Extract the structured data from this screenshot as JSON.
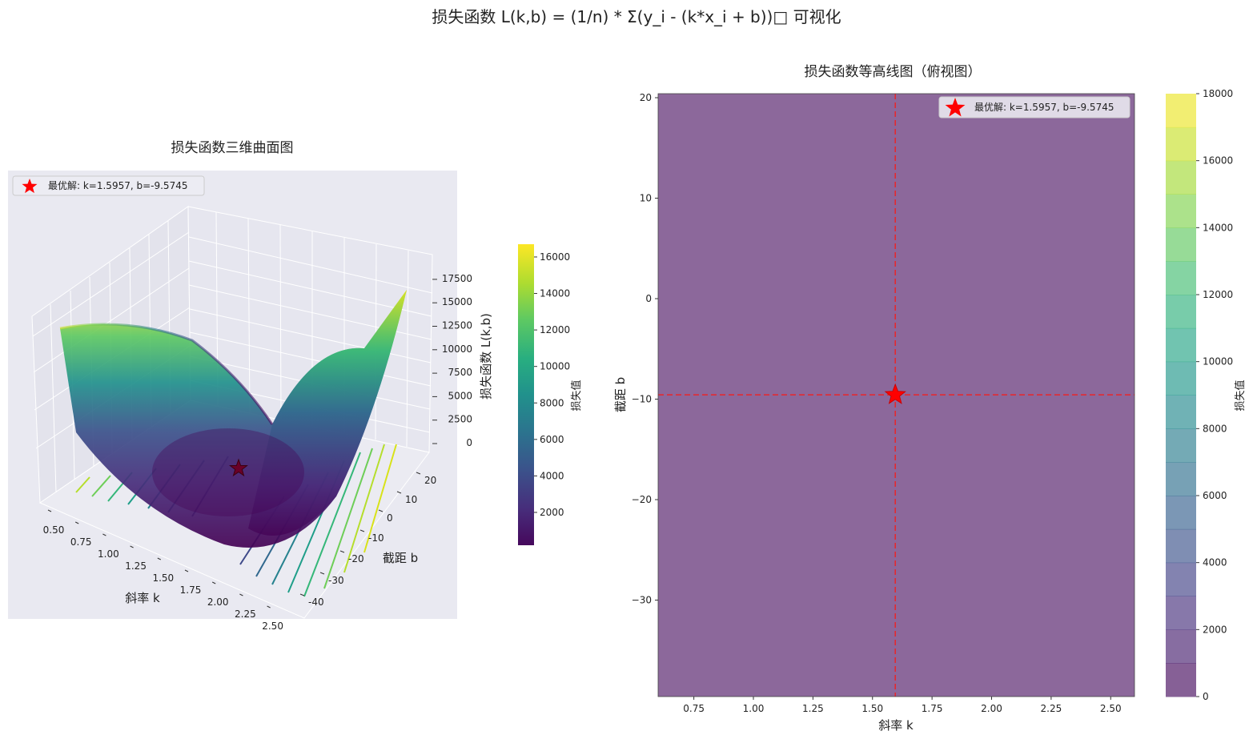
{
  "suptitle": "损失函数 L(k,b) = (1/n) * Σ(y_i - (k*x_i + b))□ 可视化",
  "colors": {
    "viridis": [
      "#440154",
      "#482878",
      "#3e4989",
      "#31688e",
      "#26828e",
      "#1f9e89",
      "#35b779",
      "#6ece58",
      "#b5de2b",
      "#fde725"
    ],
    "optimum": "#ff0000",
    "pane": "#e9e9f1",
    "grid": "#ffffff"
  },
  "optimum": {
    "k": 1.5957,
    "b": -9.5745,
    "label": "最优解: k=1.5957, b=-9.5745"
  },
  "chart_data": [
    {
      "type": "surface3d",
      "title": "损失函数三维曲面图",
      "xlabel": "斜率 k",
      "ylabel": "截距 b",
      "zlabel": "损失函数 L(k,b)",
      "x_ticks": [
        "0.50",
        "0.75",
        "1.00",
        "1.25",
        "1.50",
        "1.75",
        "2.00",
        "2.25",
        "2.50"
      ],
      "y_ticks": [
        "-40",
        "-30",
        "-20",
        "-10",
        "0",
        "10",
        "20"
      ],
      "z_ticks": [
        "0",
        "2500",
        "5000",
        "7500",
        "10000",
        "12500",
        "15000",
        "17500"
      ],
      "xlim": [
        0.5,
        2.6
      ],
      "ylim": [
        -40,
        20
      ],
      "zlim": [
        0,
        18000
      ],
      "legend": "upper-left",
      "colorbar": {
        "label": "损失值",
        "ticks": [
          "2000",
          "4000",
          "6000",
          "8000",
          "10000",
          "12000",
          "14000",
          "16000"
        ],
        "range": [
          200,
          16700
        ]
      },
      "optimum_marker": {
        "k": 1.5957,
        "b": -9.5745,
        "z": 0
      }
    },
    {
      "type": "contour",
      "title": "损失函数等高线图（俯视图）",
      "xlabel": "斜率 k",
      "ylabel": "截距 b",
      "x_ticks": [
        "0.75",
        "1.00",
        "1.25",
        "1.50",
        "1.75",
        "2.00",
        "2.25",
        "2.50"
      ],
      "y_ticks": [
        "20",
        "10",
        "0",
        "-10",
        "-20",
        "-30"
      ],
      "xlim": [
        0.6,
        2.6
      ],
      "ylim": [
        -39.6,
        20.4
      ],
      "legend": "upper-right",
      "guide_lines": {
        "k": 1.5957,
        "b": -9.5745,
        "color": "red",
        "style": "dashed"
      },
      "colorbar": {
        "label": "损失值",
        "ticks": [
          "0",
          "2000",
          "4000",
          "6000",
          "8000",
          "10000",
          "12000",
          "14000",
          "16000",
          "18000"
        ],
        "range": [
          0,
          18000
        ]
      }
    }
  ]
}
